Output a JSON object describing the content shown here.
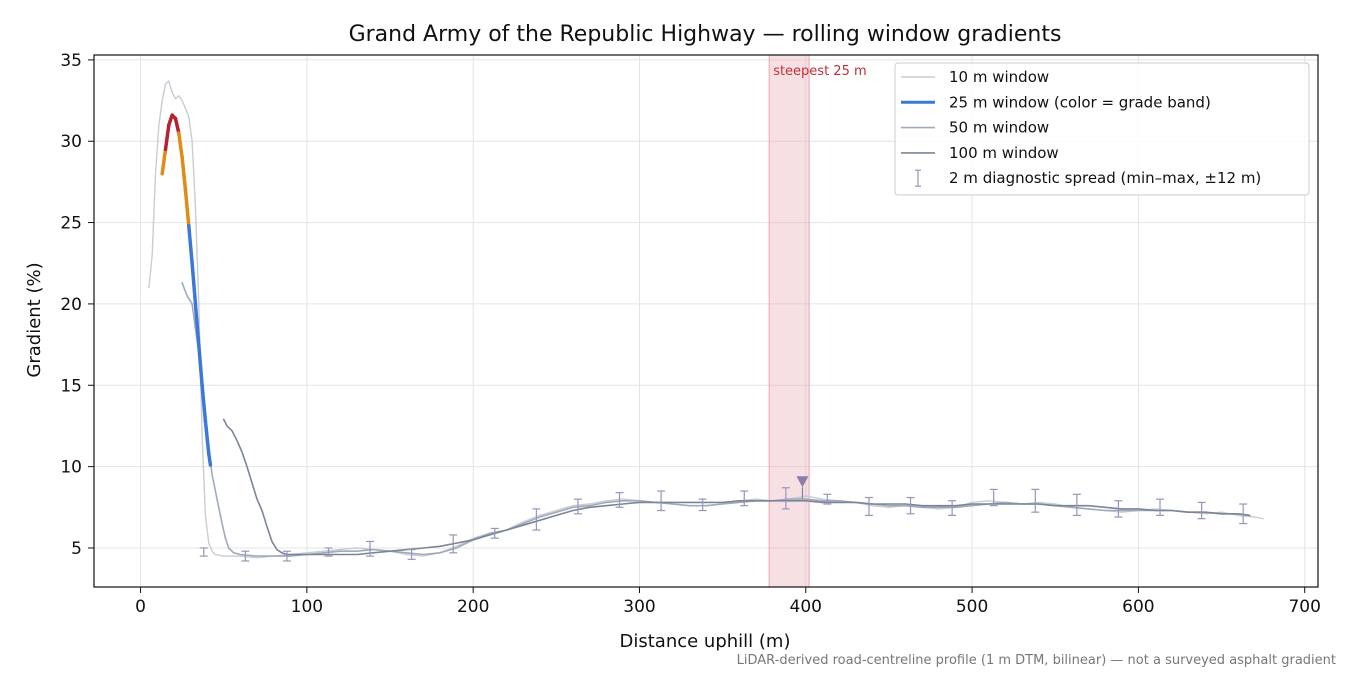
{
  "chart_data": {
    "type": "line",
    "title": "Grand Army of the Republic Highway — rolling window gradients",
    "xlabel": "Distance uphill (m)",
    "ylabel": "Gradient (%)",
    "xlim": [
      -28,
      708
    ],
    "ylim": [
      2.6,
      35.3
    ],
    "xticks": [
      0,
      100,
      200,
      300,
      400,
      500,
      600,
      700
    ],
    "yticks": [
      5,
      10,
      15,
      20,
      25,
      30,
      35
    ],
    "grid": true,
    "legend_position": "top-right",
    "footnote": "LiDAR-derived road-centreline profile (1 m DTM, bilinear) — not a surveyed asphalt gradient",
    "highlight": {
      "label": "steepest 25 m",
      "x_start": 378,
      "x_end": 402,
      "color": "#e8a6ae"
    },
    "marker": {
      "x": 398,
      "y": 9.1,
      "color": "#8a7fa8"
    },
    "series": [
      {
        "name": "10 m window",
        "color": "#c8ccd4",
        "x": [
          5,
          7,
          9,
          11,
          13,
          15,
          17,
          19,
          21,
          23,
          25,
          27,
          29,
          31,
          33,
          35,
          37,
          39,
          41,
          43,
          45,
          50,
          60,
          70,
          80,
          90,
          100,
          110,
          120,
          130,
          140,
          150,
          160,
          170,
          180,
          190,
          200,
          210,
          220,
          230,
          240,
          250,
          260,
          270,
          280,
          290,
          300,
          310,
          320,
          330,
          340,
          350,
          360,
          370,
          380,
          390,
          400,
          410,
          420,
          430,
          440,
          450,
          460,
          470,
          480,
          490,
          500,
          510,
          520,
          530,
          540,
          550,
          560,
          570,
          580,
          590,
          600,
          610,
          620,
          630,
          640,
          650,
          660,
          670,
          675
        ],
        "y": [
          21,
          23,
          28,
          31,
          32.5,
          33.5,
          33.7,
          33,
          32.6,
          32.8,
          32.5,
          32,
          31.5,
          30,
          26,
          20,
          12,
          7,
          5.3,
          4.8,
          4.6,
          4.5,
          4.5,
          4.4,
          4.5,
          4.6,
          4.7,
          4.8,
          4.9,
          5.0,
          4.9,
          4.8,
          4.6,
          4.5,
          4.7,
          5.1,
          5.6,
          5.9,
          6.1,
          6.6,
          7.0,
          7.3,
          7.6,
          7.7,
          7.9,
          8.0,
          7.9,
          7.8,
          7.7,
          7.6,
          7.6,
          7.7,
          7.9,
          8.0,
          7.9,
          8.0,
          8.2,
          8.0,
          7.9,
          7.8,
          7.6,
          7.5,
          7.6,
          7.5,
          7.4,
          7.5,
          7.8,
          7.9,
          7.8,
          7.7,
          7.8,
          7.7,
          7.5,
          7.4,
          7.3,
          7.2,
          7.3,
          7.4,
          7.3,
          7.2,
          7.1,
          7.2,
          7.0,
          6.9,
          6.8
        ]
      },
      {
        "name": "25 m window (color = grade band)",
        "color": "#3b78d8",
        "x": [
          13,
          15,
          17,
          19,
          21,
          23,
          25,
          27,
          29,
          31,
          33,
          35,
          37,
          39,
          41,
          42
        ],
        "y": [
          28.0,
          29.5,
          31.0,
          31.6,
          31.4,
          30.5,
          29.0,
          27.0,
          24.8,
          22.5,
          20.0,
          17.5,
          15.0,
          12.8,
          10.8,
          10.1
        ],
        "bands": [
          {
            "from": 0,
            "to": 25,
            "color": "#3b78d8"
          },
          {
            "from": 25,
            "to": 30,
            "color": "#e08a17"
          },
          {
            "from": 30,
            "to": 100,
            "color": "#b52231"
          }
        ]
      },
      {
        "name": "50 m window",
        "color": "#a0aabb",
        "x": [
          25,
          28,
          31,
          33,
          35,
          37,
          39,
          41,
          43,
          45,
          47,
          49,
          51,
          53,
          56,
          60,
          70,
          80,
          90,
          100,
          110,
          120,
          130,
          140,
          150,
          160,
          170,
          180,
          190,
          200,
          210,
          220,
          230,
          240,
          250,
          260,
          270,
          280,
          290,
          300,
          310,
          320,
          330,
          340,
          350,
          360,
          370,
          380,
          390,
          400,
          410,
          420,
          430,
          440,
          450,
          460,
          470,
          480,
          490,
          500,
          510,
          520,
          530,
          540,
          550,
          560,
          570,
          580,
          590,
          600,
          610,
          620,
          630,
          640,
          650,
          660,
          667
        ],
        "y": [
          21.3,
          20.5,
          20.0,
          18.5,
          17.0,
          15.0,
          13.0,
          11.0,
          9.5,
          8.5,
          7.5,
          6.5,
          5.6,
          5.0,
          4.7,
          4.6,
          4.5,
          4.5,
          4.5,
          4.6,
          4.7,
          4.8,
          4.8,
          4.9,
          4.8,
          4.7,
          4.6,
          4.7,
          5.0,
          5.5,
          5.9,
          6.1,
          6.5,
          6.9,
          7.2,
          7.5,
          7.6,
          7.8,
          7.9,
          7.9,
          7.8,
          7.7,
          7.6,
          7.6,
          7.7,
          7.8,
          7.9,
          7.9,
          8.0,
          8.0,
          7.9,
          7.9,
          7.8,
          7.7,
          7.6,
          7.6,
          7.5,
          7.5,
          7.5,
          7.6,
          7.7,
          7.8,
          7.7,
          7.7,
          7.6,
          7.5,
          7.4,
          7.3,
          7.3,
          7.3,
          7.3,
          7.3,
          7.2,
          7.2,
          7.1,
          7.1,
          7.0
        ]
      },
      {
        "name": "100 m window",
        "color": "#7c8595",
        "x": [
          50,
          52,
          55,
          58,
          61,
          64,
          67,
          70,
          73,
          76,
          79,
          82,
          85,
          88,
          91,
          95,
          100,
          110,
          120,
          130,
          140,
          150,
          160,
          170,
          180,
          190,
          200,
          210,
          220,
          230,
          240,
          250,
          260,
          270,
          280,
          290,
          300,
          310,
          320,
          330,
          340,
          350,
          360,
          370,
          380,
          390,
          400,
          410,
          420,
          430,
          440,
          450,
          460,
          470,
          480,
          490,
          500,
          510,
          520,
          530,
          540,
          550,
          560,
          570,
          580,
          590,
          600,
          610,
          620,
          630,
          640,
          650,
          660,
          667
        ],
        "y": [
          12.9,
          12.5,
          12.2,
          11.6,
          10.9,
          10.0,
          9.0,
          8.0,
          7.3,
          6.3,
          5.4,
          4.9,
          4.7,
          4.6,
          4.6,
          4.6,
          4.6,
          4.6,
          4.6,
          4.6,
          4.7,
          4.8,
          4.9,
          5.0,
          5.1,
          5.3,
          5.5,
          5.8,
          6.1,
          6.4,
          6.7,
          7.0,
          7.3,
          7.5,
          7.6,
          7.7,
          7.8,
          7.8,
          7.8,
          7.8,
          7.8,
          7.8,
          7.9,
          7.9,
          7.9,
          7.9,
          7.9,
          7.8,
          7.8,
          7.8,
          7.7,
          7.7,
          7.7,
          7.6,
          7.6,
          7.6,
          7.7,
          7.7,
          7.7,
          7.7,
          7.7,
          7.6,
          7.6,
          7.6,
          7.5,
          7.4,
          7.4,
          7.3,
          7.3,
          7.2,
          7.2,
          7.1,
          7.1,
          7.0
        ]
      },
      {
        "name": "2 m diagnostic spread (min–max, ±12 m)",
        "color": "#9a93b8",
        "kind": "errorbar",
        "x": [
          38,
          63,
          88,
          113,
          138,
          163,
          188,
          213,
          238,
          263,
          288,
          313,
          338,
          363,
          388,
          413,
          438,
          463,
          488,
          513,
          538,
          563,
          588,
          613,
          638,
          663
        ],
        "center": [
          4.8,
          4.5,
          4.5,
          4.7,
          4.9,
          4.6,
          5.2,
          5.9,
          6.8,
          7.5,
          8.0,
          7.9,
          7.7,
          8.0,
          8.0,
          8.0,
          7.7,
          7.6,
          7.5,
          8.0,
          7.9,
          7.6,
          7.4,
          7.5,
          7.3,
          7.1
        ],
        "min": [
          4.5,
          4.2,
          4.2,
          4.5,
          4.5,
          4.3,
          4.7,
          5.6,
          6.1,
          7.1,
          7.5,
          7.3,
          7.3,
          7.6,
          7.4,
          7.7,
          7.0,
          7.1,
          7.0,
          7.6,
          7.2,
          7.0,
          6.9,
          7.0,
          6.8,
          6.5
        ],
        "max": [
          5.0,
          4.8,
          4.8,
          5.0,
          5.4,
          4.9,
          5.8,
          6.2,
          7.4,
          8.0,
          8.4,
          8.5,
          8.0,
          8.5,
          8.7,
          8.3,
          8.1,
          8.1,
          7.9,
          8.6,
          8.6,
          8.3,
          7.9,
          8.0,
          7.8,
          7.7
        ]
      }
    ]
  }
}
